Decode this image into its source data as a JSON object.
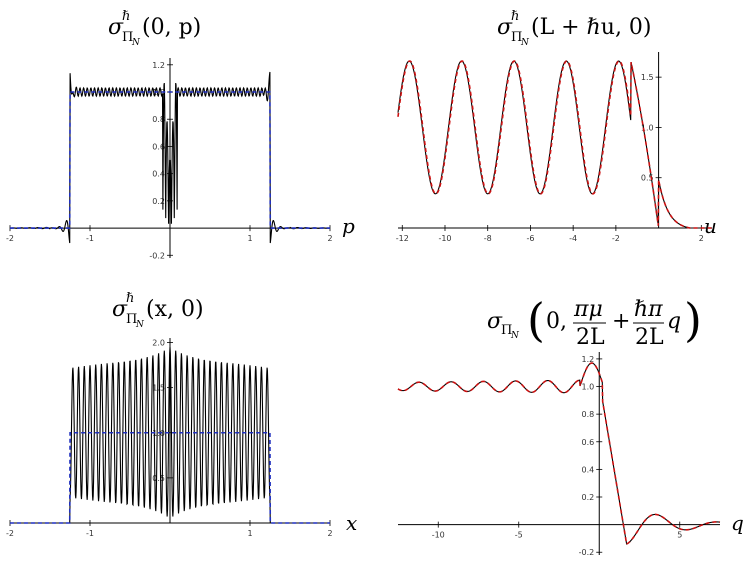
{
  "chart_data": [
    {
      "type": "line",
      "title": "σ^ℏ_{Π_N}(0, p)",
      "title_parts": {
        "base": "σ",
        "sup": "ℏ",
        "sub": "Π",
        "subsub": "N",
        "args": "(0, p)"
      },
      "xlabel": "p",
      "ylabel": "",
      "xlim": [
        -2,
        2
      ],
      "ylim": [
        -0.22,
        1.25
      ],
      "xticks": [
        -2,
        -1,
        1,
        2
      ],
      "yticks": [
        -0.2,
        0.2,
        0.4,
        0.6,
        0.8,
        1.0,
        1.2
      ],
      "ytick_labels": [
        "-0.2",
        "0.2",
        "0.4",
        "0.6",
        "0.8",
        "1.0",
        "1.2"
      ],
      "series": [
        {
          "style": "solid",
          "color": "#000000",
          "model": {
            "kind": "dirichlet_box",
            "L": 1.25,
            "amp": 1.0,
            "osc_amp": 0.03,
            "osc_freq": 22,
            "gibbs_peak": 1.15,
            "center_dip_min": 0.02,
            "center_peak": 1.22
          }
        },
        {
          "style": "dashed",
          "color": "#1f2fbf",
          "model": {
            "kind": "box",
            "L": 1.25,
            "amp": 1.0
          }
        }
      ],
      "grid": false,
      "legend": "none"
    },
    {
      "type": "line",
      "title": "σ^ℏ_{Π_N}(L + ℏu, 0)",
      "title_parts": {
        "base": "σ",
        "sup": "ℏ",
        "sub": "Π",
        "subsub": "N",
        "args": "(L + ℏu, 0)"
      },
      "xlabel": "u",
      "ylabel": "",
      "xlim": [
        -12.2,
        2.5
      ],
      "ylim": [
        0,
        1.75
      ],
      "xticks": [
        -12,
        -10,
        -8,
        -6,
        -4,
        -2,
        2
      ],
      "yticks": [
        0.5,
        1.0,
        1.5
      ],
      "ytick_labels": [
        "0.5",
        "1.0",
        "1.5"
      ],
      "series": [
        {
          "style": "solid",
          "color": "#000000",
          "model": {
            "kind": "edge_osc",
            "mean": 1.0,
            "amp": 0.66,
            "period": 2.45,
            "phase_shift": 0.25
          }
        },
        {
          "style": "dashed",
          "color": "#cc1111",
          "model": {
            "kind": "edge_osc",
            "mean": 1.0,
            "amp": 0.66,
            "period": 2.45,
            "phase_shift": 0.0
          }
        }
      ],
      "grid": false,
      "legend": "none"
    },
    {
      "type": "line",
      "title": "σ^ℏ_{Π_N}(x, 0)",
      "title_parts": {
        "base": "σ",
        "sup": "ℏ",
        "sub": "Π",
        "subsub": "N",
        "args": "(x, 0)"
      },
      "xlabel": "x",
      "ylabel": "",
      "xlim": [
        -2,
        2
      ],
      "ylim": [
        0,
        2.05
      ],
      "xticks": [
        -2,
        -1,
        1,
        2
      ],
      "yticks": [
        0.5,
        1.0,
        1.5,
        2.0
      ],
      "ytick_labels": [
        "0.5",
        "1.0",
        "1.5",
        "2.0"
      ],
      "series": [
        {
          "style": "solid",
          "color": "#000000",
          "model": {
            "kind": "dense_osc",
            "L": 1.25,
            "mean": 1.0,
            "edge_amp": 0.72,
            "center_amp": 0.95,
            "cycles": 35
          }
        },
        {
          "style": "dashed",
          "color": "#1f2fbf",
          "model": {
            "kind": "box",
            "L": 1.25,
            "amp": 1.0
          }
        }
      ],
      "grid": false,
      "legend": "none"
    },
    {
      "type": "line",
      "title": "σ_{Π_N}(0, πμ/2L + ℏπ/2L q)",
      "title_parts": {
        "base": "σ",
        "sub": "Π",
        "subsub": "N",
        "lead": "0,",
        "frac1_num": "πμ",
        "frac1_den": "2L",
        "plus": "+",
        "frac2_num": "ℏπ",
        "frac2_den": "2L",
        "var": "q"
      },
      "xlabel": "q",
      "ylabel": "",
      "xlim": [
        -12.5,
        7.5
      ],
      "ylim": [
        -0.22,
        1.25
      ],
      "xticks": [
        -10,
        -5,
        5
      ],
      "yticks": [
        -0.2,
        0.2,
        0.4,
        0.6,
        0.8,
        1.0,
        1.2
      ],
      "ytick_labels": [
        "-0.2",
        "0.2",
        "0.4",
        "0.6",
        "0.8",
        "1.0",
        "1.2"
      ],
      "series": [
        {
          "style": "solid",
          "color": "#000000",
          "model": {
            "kind": "step_osc",
            "level": 1.0,
            "amp": 0.03,
            "period": 2.0,
            "peak": 1.17,
            "undershoot": -0.14
          }
        },
        {
          "style": "dashed",
          "color": "#cc1111",
          "model": {
            "kind": "step_osc",
            "level": 1.0,
            "amp": 0.03,
            "period": 2.0,
            "peak": 1.17,
            "undershoot": -0.14
          }
        }
      ],
      "grid": false,
      "legend": "none"
    }
  ]
}
